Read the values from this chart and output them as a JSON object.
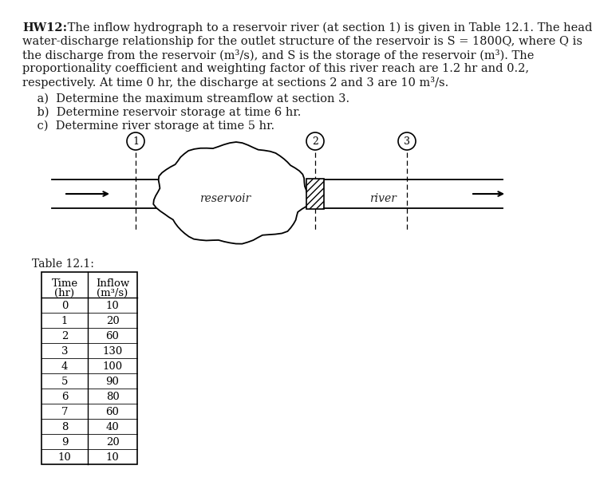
{
  "title_bold": "HW12:",
  "line1_rest": " The inflow hydrograph to a reservoir river (at section 1) is given in Table 12.1. The head",
  "line2": "water-discharge relationship for the outlet structure of the reservoir is S = 1800Q, where Q is",
  "line3": "the discharge from the reservoir (m³/s), and S is the storage of the reservoir (m³). The",
  "line4": "proportionality coefficient and weighting factor of this river reach are 1.2 hr and 0.2,",
  "line5": "respectively. At time 0 hr, the discharge at sections 2 and 3 are 10 m³/s.",
  "qa": "    a)  Determine the maximum streamflow at section 3.",
  "qb": "    b)  Determine reservoir storage at time 6 hr.",
  "qc": "    c)  Determine river storage at time 5 hr.",
  "table_label": "Table 12.1:",
  "col_header1a": "Time",
  "col_header1b": "(hr)",
  "col_header2a": "Inflow",
  "col_header2b": "(m³/s)",
  "time": [
    0,
    1,
    2,
    3,
    4,
    5,
    6,
    7,
    8,
    9,
    10
  ],
  "inflow": [
    10,
    20,
    60,
    130,
    100,
    90,
    80,
    60,
    40,
    20,
    10
  ],
  "bg_color": "#ffffff",
  "text_color": "#1a1a1a",
  "reservoir_label": "reservoir",
  "river_label": "river",
  "section_labels": [
    "1",
    "2",
    "3"
  ]
}
